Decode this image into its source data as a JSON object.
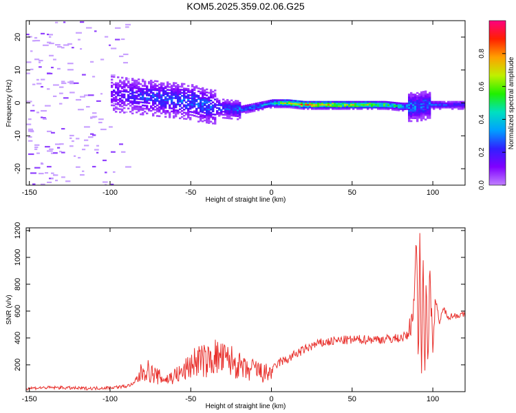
{
  "title": "KOM5.2025.359.02.06.G25",
  "chart_data": [
    {
      "type": "heatmap",
      "title": "KOM5.2025.359.02.06.G25",
      "xlabel": "Height of straight line (km)",
      "ylabel": "Frequency (Hz)",
      "xlim": [
        -152,
        120
      ],
      "ylim": [
        -25,
        25
      ],
      "x_ticks": [
        -150,
        -100,
        -50,
        0,
        50,
        100
      ],
      "y_ticks": [
        -20,
        -10,
        0,
        10,
        20
      ],
      "colorbar": {
        "label": "Normalized spectral amplitude",
        "range": [
          0,
          1
        ],
        "ticks": [
          "0.0",
          "0.2",
          "0.4",
          "0.6",
          "0.8"
        ],
        "tick_values": [
          0.0,
          0.2,
          0.4,
          0.6,
          0.8
        ]
      },
      "colormap": [
        "#c080ff",
        "#8000ff",
        "#3020ff",
        "#00a0ff",
        "#00e0c0",
        "#20f000",
        "#c0f000",
        "#ffa000",
        "#ff2000",
        "#ff0080"
      ],
      "signal_track": {
        "x": [
          -100,
          -80,
          -60,
          -50,
          -40,
          -30,
          -20,
          -10,
          0,
          10,
          20,
          30,
          40,
          50,
          60,
          70,
          80,
          85,
          90,
          95,
          100,
          110,
          120
        ],
        "freq": [
          3,
          2,
          1,
          0.5,
          -1,
          -1.5,
          -2,
          -1,
          0,
          0,
          -0.5,
          -0.5,
          -0.5,
          -0.5,
          -0.5,
          -0.5,
          -1,
          -1,
          -1,
          -0.5,
          -0.5,
          -0.5,
          -0.5
        ],
        "amplitude": [
          0.15,
          0.25,
          0.3,
          0.3,
          0.3,
          0.25,
          0.3,
          0.35,
          0.45,
          0.85,
          0.8,
          0.75,
          0.75,
          0.7,
          0.7,
          0.6,
          0.45,
          0.35,
          0.3,
          0.3,
          0.3,
          0.25,
          0.25
        ]
      }
    },
    {
      "type": "line",
      "xlabel": "Height of straight line (km)",
      "ylabel": "SNR (v/v)",
      "xlim": [
        -152,
        120
      ],
      "ylim": [
        0,
        1220
      ],
      "x_ticks": [
        -150,
        -100,
        -50,
        0,
        50,
        100
      ],
      "y_ticks": [
        200,
        400,
        600,
        800,
        1000,
        1200
      ],
      "series": [
        {
          "name": "SNR",
          "color": "#e8302c",
          "x": [
            -152,
            -140,
            -130,
            -120,
            -110,
            -100,
            -90,
            -85,
            -80,
            -78,
            -75,
            -70,
            -65,
            -60,
            -55,
            -50,
            -45,
            -40,
            -35,
            -30,
            -25,
            -20,
            -15,
            -10,
            -5,
            0,
            5,
            10,
            15,
            20,
            25,
            30,
            40,
            50,
            60,
            70,
            80,
            85,
            88,
            90,
            91,
            92,
            93,
            94,
            95,
            96,
            97,
            98,
            100,
            102,
            104,
            106,
            110,
            115,
            120
          ],
          "y": [
            25,
            30,
            30,
            25,
            25,
            30,
            40,
            60,
            150,
            170,
            140,
            110,
            90,
            120,
            140,
            200,
            240,
            220,
            260,
            240,
            230,
            190,
            150,
            170,
            130,
            150,
            220,
            240,
            280,
            310,
            340,
            360,
            380,
            385,
            390,
            390,
            400,
            420,
            620,
            1150,
            200,
            1220,
            100,
            1050,
            160,
            900,
            60,
            880,
            380,
            720,
            480,
            620,
            560,
            570,
            570
          ]
        }
      ]
    }
  ]
}
